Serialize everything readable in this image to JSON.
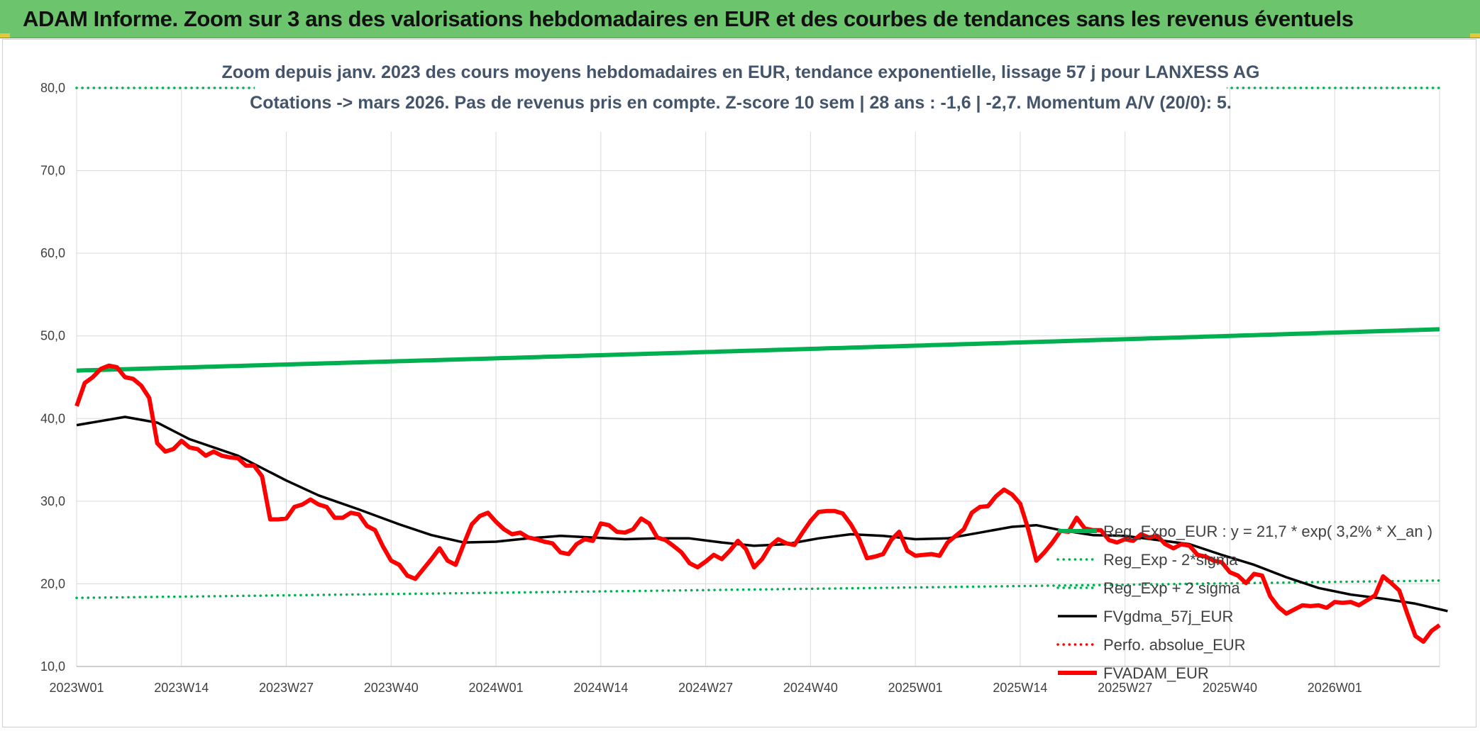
{
  "header": {
    "title": "ADAM Informe. Zoom sur 3 ans des valorisations hebdomadaires en EUR et des courbes de tendances sans les revenus éventuels"
  },
  "chart_data": {
    "type": "line",
    "subtitle_line1": "Zoom depuis janv. 2023 des cours moyens hebdomadaires en EUR, tendance exponentielle, lissage 57 j pour LANXESS AG",
    "subtitle_line2": "Cotations -> mars 2026. Pas de revenus pris en compte. Z-score 10 sem | 28 ans : -1,6 | -2,7. Momentum A/V (20/0): 5.",
    "ylim": [
      10,
      80
    ],
    "y_ticks": [
      80,
      70,
      60,
      50,
      40,
      30,
      20,
      10
    ],
    "y_tick_labels": [
      "80,0",
      "70,0",
      "60,0",
      "50,0",
      "40,0",
      "30,0",
      "20,0",
      "10,0"
    ],
    "x_count": 170,
    "x_ticks": [
      {
        "label": "2023W01",
        "index": 0
      },
      {
        "label": "2023W14",
        "index": 13
      },
      {
        "label": "2023W27",
        "index": 26
      },
      {
        "label": "2023W40",
        "index": 39
      },
      {
        "label": "2024W01",
        "index": 52
      },
      {
        "label": "2024W14",
        "index": 65
      },
      {
        "label": "2024W27",
        "index": 78
      },
      {
        "label": "2024W40",
        "index": 91
      },
      {
        "label": "2025W01",
        "index": 104
      },
      {
        "label": "2025W14",
        "index": 117
      },
      {
        "label": "2025W27",
        "index": 130
      },
      {
        "label": "2025W40",
        "index": 143
      },
      {
        "label": "2026W01",
        "index": 156
      }
    ],
    "series": [
      {
        "name": "Reg_Expo_EUR : y = 21,7 * exp( 3,2% *  X_an )",
        "style": "solid-thick",
        "color": "#00b050",
        "start": 45.8,
        "end": 50.8
      },
      {
        "name": "Reg_Exp - 2*sigma",
        "style": "dotted",
        "color": "#00b050",
        "start": 80.0,
        "end": 80.0
      },
      {
        "name": "Reg_Exp + 2 sigma",
        "style": "dotted",
        "color": "#00b050",
        "start": 18.3,
        "end": 20.4
      },
      {
        "name": "FVgdma_57j_EUR",
        "style": "solid",
        "color": "#000000",
        "points": [
          [
            0,
            39.2
          ],
          [
            6,
            40.2
          ],
          [
            10,
            39.5
          ],
          [
            14,
            37.5
          ],
          [
            20,
            35.5
          ],
          [
            26,
            32.5
          ],
          [
            30,
            30.7
          ],
          [
            35,
            29.0
          ],
          [
            40,
            27.2
          ],
          [
            44,
            25.9
          ],
          [
            48,
            25.0
          ],
          [
            52,
            25.1
          ],
          [
            56,
            25.5
          ],
          [
            60,
            25.8
          ],
          [
            64,
            25.6
          ],
          [
            68,
            25.4
          ],
          [
            72,
            25.5
          ],
          [
            76,
            25.5
          ],
          [
            80,
            25.0
          ],
          [
            84,
            24.6
          ],
          [
            88,
            24.8
          ],
          [
            92,
            25.5
          ],
          [
            96,
            26.0
          ],
          [
            100,
            25.8
          ],
          [
            104,
            25.4
          ],
          [
            108,
            25.5
          ],
          [
            112,
            26.2
          ],
          [
            116,
            26.9
          ],
          [
            119,
            27.1
          ],
          [
            122,
            26.5
          ],
          [
            126,
            25.9
          ],
          [
            130,
            25.8
          ],
          [
            134,
            25.3
          ],
          [
            138,
            24.8
          ],
          [
            142,
            23.5
          ],
          [
            146,
            22.3
          ],
          [
            150,
            20.8
          ],
          [
            154,
            19.5
          ],
          [
            158,
            18.7
          ],
          [
            162,
            18.2
          ],
          [
            166,
            17.6
          ],
          [
            170,
            16.7
          ]
        ]
      },
      {
        "name": "Perfo. absolue_EUR",
        "style": "dotted",
        "color": "#ff0000",
        "start": null,
        "end": null
      },
      {
        "name": "FVADAM_EUR",
        "style": "solid-thick",
        "color": "#ff0000",
        "points": [
          [
            0,
            41.5
          ],
          [
            1,
            44.3
          ],
          [
            2,
            45.0
          ],
          [
            3,
            46.0
          ],
          [
            4,
            46.4
          ],
          [
            5,
            46.2
          ],
          [
            6,
            45.0
          ],
          [
            7,
            44.8
          ],
          [
            8,
            44.0
          ],
          [
            9,
            42.5
          ],
          [
            10,
            37.0
          ],
          [
            11,
            36.0
          ],
          [
            12,
            36.3
          ],
          [
            13,
            37.3
          ],
          [
            14,
            36.5
          ],
          [
            15,
            36.3
          ],
          [
            16,
            35.5
          ],
          [
            17,
            36.0
          ],
          [
            18,
            35.5
          ],
          [
            19,
            35.3
          ],
          [
            20,
            35.2
          ],
          [
            21,
            34.3
          ],
          [
            22,
            34.3
          ],
          [
            23,
            33.0
          ],
          [
            24,
            27.8
          ],
          [
            25,
            27.8
          ],
          [
            26,
            27.9
          ],
          [
            27,
            29.3
          ],
          [
            28,
            29.6
          ],
          [
            29,
            30.2
          ],
          [
            30,
            29.6
          ],
          [
            31,
            29.3
          ],
          [
            32,
            28.0
          ],
          [
            33,
            28.0
          ],
          [
            34,
            28.6
          ],
          [
            35,
            28.4
          ],
          [
            36,
            27.0
          ],
          [
            37,
            26.5
          ],
          [
            38,
            24.5
          ],
          [
            39,
            22.8
          ],
          [
            40,
            22.3
          ],
          [
            41,
            21.0
          ],
          [
            42,
            20.6
          ],
          [
            43,
            21.8
          ],
          [
            44,
            23.0
          ],
          [
            45,
            24.3
          ],
          [
            46,
            22.8
          ],
          [
            47,
            22.3
          ],
          [
            48,
            24.8
          ],
          [
            49,
            27.2
          ],
          [
            50,
            28.2
          ],
          [
            51,
            28.6
          ],
          [
            52,
            27.5
          ],
          [
            53,
            26.6
          ],
          [
            54,
            26.0
          ],
          [
            55,
            26.2
          ],
          [
            56,
            25.6
          ],
          [
            57,
            25.4
          ],
          [
            58,
            25.1
          ],
          [
            59,
            24.9
          ],
          [
            60,
            23.8
          ],
          [
            61,
            23.6
          ],
          [
            62,
            24.8
          ],
          [
            63,
            25.4
          ],
          [
            64,
            25.2
          ],
          [
            65,
            27.3
          ],
          [
            66,
            27.1
          ],
          [
            67,
            26.3
          ],
          [
            68,
            26.2
          ],
          [
            69,
            26.6
          ],
          [
            70,
            27.9
          ],
          [
            71,
            27.3
          ],
          [
            72,
            25.6
          ],
          [
            73,
            25.3
          ],
          [
            74,
            24.6
          ],
          [
            75,
            23.8
          ],
          [
            76,
            22.5
          ],
          [
            77,
            22.0
          ],
          [
            78,
            22.7
          ],
          [
            79,
            23.5
          ],
          [
            80,
            23.0
          ],
          [
            81,
            24.0
          ],
          [
            82,
            25.2
          ],
          [
            83,
            24.2
          ],
          [
            84,
            22.0
          ],
          [
            85,
            23.0
          ],
          [
            86,
            24.6
          ],
          [
            87,
            25.4
          ],
          [
            88,
            24.9
          ],
          [
            89,
            24.7
          ],
          [
            90,
            26.2
          ],
          [
            91,
            27.6
          ],
          [
            92,
            28.7
          ],
          [
            93,
            28.8
          ],
          [
            94,
            28.8
          ],
          [
            95,
            28.5
          ],
          [
            96,
            27.2
          ],
          [
            97,
            25.5
          ],
          [
            98,
            23.1
          ],
          [
            99,
            23.3
          ],
          [
            100,
            23.6
          ],
          [
            101,
            25.3
          ],
          [
            102,
            26.3
          ],
          [
            103,
            24.0
          ],
          [
            104,
            23.4
          ],
          [
            105,
            23.5
          ],
          [
            106,
            23.6
          ],
          [
            107,
            23.4
          ],
          [
            108,
            25.0
          ],
          [
            109,
            25.8
          ],
          [
            110,
            26.6
          ],
          [
            111,
            28.6
          ],
          [
            112,
            29.3
          ],
          [
            113,
            29.4
          ],
          [
            114,
            30.6
          ],
          [
            115,
            31.4
          ],
          [
            116,
            30.8
          ],
          [
            117,
            29.7
          ],
          [
            118,
            26.6
          ],
          [
            119,
            22.8
          ],
          [
            120,
            23.8
          ],
          [
            121,
            25.0
          ],
          [
            122,
            26.4
          ],
          [
            123,
            26.3
          ],
          [
            124,
            28.0
          ],
          [
            125,
            26.7
          ],
          [
            126,
            26.5
          ],
          [
            127,
            26.5
          ],
          [
            128,
            25.3
          ],
          [
            129,
            25.0
          ],
          [
            130,
            25.4
          ],
          [
            131,
            25.2
          ],
          [
            132,
            26.0
          ],
          [
            133,
            25.6
          ],
          [
            134,
            25.8
          ],
          [
            135,
            24.8
          ],
          [
            136,
            24.3
          ],
          [
            137,
            24.8
          ],
          [
            138,
            24.6
          ],
          [
            139,
            23.5
          ],
          [
            140,
            23.3
          ],
          [
            141,
            22.8
          ],
          [
            142,
            22.6
          ],
          [
            143,
            21.4
          ],
          [
            144,
            21.0
          ],
          [
            145,
            20.1
          ],
          [
            146,
            21.2
          ],
          [
            147,
            21.0
          ],
          [
            148,
            18.5
          ],
          [
            149,
            17.2
          ],
          [
            150,
            16.4
          ],
          [
            151,
            16.9
          ],
          [
            152,
            17.4
          ],
          [
            153,
            17.3
          ],
          [
            154,
            17.4
          ],
          [
            155,
            17.1
          ],
          [
            156,
            17.8
          ],
          [
            157,
            17.7
          ],
          [
            158,
            17.8
          ],
          [
            159,
            17.4
          ],
          [
            160,
            18.0
          ],
          [
            161,
            18.6
          ],
          [
            162,
            20.9
          ],
          [
            163,
            20.1
          ],
          [
            164,
            19.2
          ],
          [
            165,
            16.4
          ],
          [
            166,
            13.7
          ],
          [
            167,
            13.0
          ],
          [
            168,
            14.3
          ],
          [
            169,
            15.0
          ]
        ]
      }
    ]
  }
}
